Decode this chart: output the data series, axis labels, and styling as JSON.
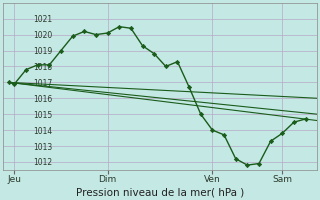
{
  "background_color": "#c4e8e4",
  "grid_color": "#b8a8c8",
  "line_color": "#1a5c1a",
  "marker_color": "#1a5c1a",
  "ylim": [
    1011.5,
    1022.0
  ],
  "xlim": [
    0,
    27
  ],
  "yticks": [
    1012,
    1013,
    1014,
    1015,
    1016,
    1017,
    1018,
    1019,
    1020,
    1021
  ],
  "xlabel": "Pression niveau de la mer( hPa )",
  "xtick_labels": [
    "Jeu",
    "Dim",
    "Ven",
    "Sam"
  ],
  "xtick_positions": [
    1,
    9,
    18,
    24
  ],
  "series1_x": [
    0.5,
    1,
    2,
    3,
    4,
    5,
    6,
    7,
    8,
    9,
    10,
    11,
    12,
    13,
    14,
    15,
    16,
    17,
    18,
    19,
    20,
    21,
    22,
    23,
    24,
    25,
    26
  ],
  "series1_y": [
    1017.0,
    1016.9,
    1017.8,
    1018.1,
    1018.1,
    1019.0,
    1019.9,
    1020.2,
    1020.0,
    1020.1,
    1020.5,
    1020.4,
    1019.3,
    1018.8,
    1018.0,
    1018.3,
    1016.7,
    1015.0,
    1014.0,
    1013.7,
    1012.2,
    1011.8,
    1011.9,
    1013.3,
    1013.8,
    1014.5,
    1014.7
  ],
  "series2_x": [
    0.5,
    27
  ],
  "series2_y": [
    1017.0,
    1015.0
  ],
  "series3_x": [
    0.5,
    27
  ],
  "series3_y": [
    1017.0,
    1016.0
  ],
  "series4_x": [
    0.5,
    27
  ],
  "series4_y": [
    1017.0,
    1014.6
  ]
}
